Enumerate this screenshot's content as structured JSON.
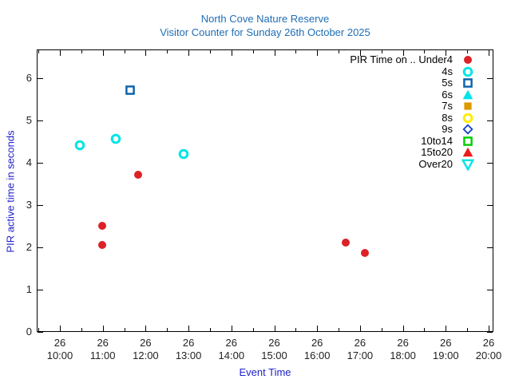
{
  "chart_data": {
    "type": "scatter",
    "title": "North Cove Nature Reserve",
    "subtitle": "Visitor Counter for Sunday 26th October 2025",
    "xlabel": "Event Time",
    "ylabel": "PIR active time in seconds",
    "grid": false,
    "legend_position": "top-right-inside",
    "colors": {
      "title": "#1e6eb5",
      "axis_label": "#2222cc",
      "tick_text": "#222222",
      "frame": "#000000"
    },
    "x_axis": {
      "date_label": "26",
      "range_hours": [
        9.46,
        20.11
      ],
      "major_ticks": [
        {
          "hour": 10,
          "line1": "26",
          "line2": "10:00"
        },
        {
          "hour": 11,
          "line1": "26",
          "line2": "11:00"
        },
        {
          "hour": 12,
          "line1": "26",
          "line2": "12:00"
        },
        {
          "hour": 13,
          "line1": "26",
          "line2": "13:00"
        },
        {
          "hour": 14,
          "line1": "26",
          "line2": "14:00"
        },
        {
          "hour": 15,
          "line1": "26",
          "line2": "15:00"
        },
        {
          "hour": 16,
          "line1": "26",
          "line2": "16:00"
        },
        {
          "hour": 17,
          "line1": "26",
          "line2": "17:00"
        },
        {
          "hour": 18,
          "line1": "26",
          "line2": "18:00"
        },
        {
          "hour": 19,
          "line1": "26",
          "line2": "19:00"
        },
        {
          "hour": 20,
          "line1": "26",
          "line2": "20:00"
        }
      ],
      "minor_tick_hours": [
        9.5,
        10.5,
        11.5,
        12.5,
        13.5,
        14.5,
        15.5,
        16.5,
        17.5,
        18.5,
        19.5
      ]
    },
    "y_axis": {
      "range": [
        0,
        6.65
      ],
      "ticks": [
        "0",
        "1",
        "2",
        "3",
        "4",
        "5",
        "6"
      ]
    },
    "legend": [
      {
        "label": "PIR Time on .. Under4",
        "marker": "circle",
        "fill": true,
        "color": "#dd2127"
      },
      {
        "label": "4s",
        "marker": "circle",
        "fill": false,
        "color": "#00e5e5"
      },
      {
        "label": "5s",
        "marker": "square",
        "fill": false,
        "color": "#0861ac"
      },
      {
        "label": "6s",
        "marker": "triangle-up",
        "fill": true,
        "color": "#00e5e5"
      },
      {
        "label": "7s",
        "marker": "square",
        "fill": true,
        "color": "#dd9900"
      },
      {
        "label": "8s",
        "marker": "circle",
        "fill": false,
        "color": "#ffed00"
      },
      {
        "label": "9s",
        "marker": "diamond",
        "fill": false,
        "color": "#1743cb"
      },
      {
        "label": "10to14",
        "marker": "square",
        "fill": false,
        "color": "#00cc00"
      },
      {
        "label": "15to20",
        "marker": "triangle-up",
        "fill": true,
        "color": "#ee1b1b"
      },
      {
        "label": "Over20",
        "marker": "triangle-down",
        "fill": false,
        "color": "#00e5e5"
      }
    ],
    "series": [
      {
        "name": "Under4",
        "marker": "circle",
        "fill": true,
        "color": "#dd2127",
        "points": [
          {
            "time": "10:59",
            "hour": 10.98,
            "seconds": 2.5
          },
          {
            "time": "10:59",
            "hour": 10.98,
            "seconds": 2.05
          },
          {
            "time": "11:50",
            "hour": 11.83,
            "seconds": 3.7
          },
          {
            "time": "16:40",
            "hour": 16.67,
            "seconds": 2.1
          },
          {
            "time": "17:07",
            "hour": 17.12,
            "seconds": 1.85
          }
        ]
      },
      {
        "name": "4s",
        "marker": "circle",
        "fill": false,
        "color": "#00e5e5",
        "points": [
          {
            "time": "10:28",
            "hour": 10.47,
            "seconds": 4.4
          },
          {
            "time": "11:18",
            "hour": 11.3,
            "seconds": 4.55
          },
          {
            "time": "12:53",
            "hour": 12.89,
            "seconds": 4.2
          }
        ]
      },
      {
        "name": "5s",
        "marker": "square",
        "fill": false,
        "color": "#0861ac",
        "points": [
          {
            "time": "11:38",
            "hour": 11.64,
            "seconds": 5.7
          }
        ]
      },
      {
        "name": "6s",
        "marker": "triangle-up",
        "fill": true,
        "color": "#00e5e5",
        "points": []
      },
      {
        "name": "7s",
        "marker": "square",
        "fill": true,
        "color": "#dd9900",
        "points": []
      },
      {
        "name": "8s",
        "marker": "circle",
        "fill": false,
        "color": "#ffed00",
        "points": []
      },
      {
        "name": "9s",
        "marker": "diamond",
        "fill": false,
        "color": "#1743cb",
        "points": []
      },
      {
        "name": "10to14",
        "marker": "square",
        "fill": false,
        "color": "#00cc00",
        "points": []
      },
      {
        "name": "15to20",
        "marker": "triangle-up",
        "fill": true,
        "color": "#ee1b1b",
        "points": []
      },
      {
        "name": "Over20",
        "marker": "triangle-down",
        "fill": false,
        "color": "#00e5e5",
        "points": []
      }
    ]
  }
}
